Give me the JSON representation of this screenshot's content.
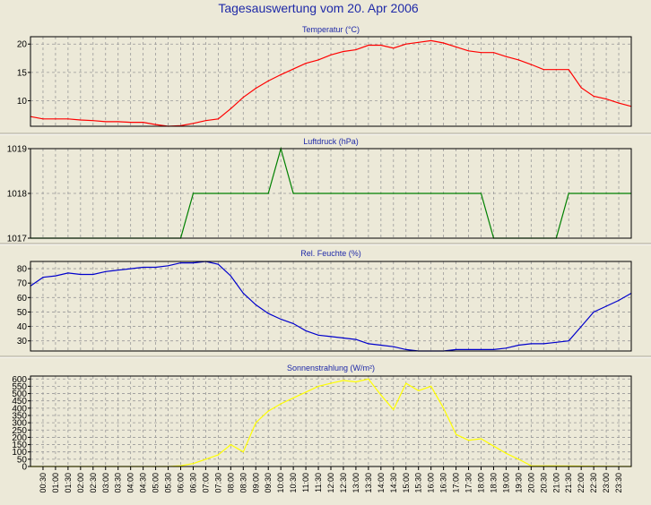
{
  "page_title": "Tagesauswertung vom 20. Apr 2006",
  "x_ticks": [
    "00:30",
    "01:00",
    "01:30",
    "02:00",
    "02:30",
    "03:00",
    "03:30",
    "04:00",
    "04:30",
    "05:00",
    "05:30",
    "06:00",
    "06:30",
    "07:00",
    "07:30",
    "08:00",
    "08:30",
    "09:00",
    "09:30",
    "10:00",
    "10:30",
    "11:00",
    "11:30",
    "12:00",
    "12:30",
    "13:00",
    "13:30",
    "14:00",
    "14:30",
    "15:00",
    "15:30",
    "16:00",
    "16:30",
    "17:00",
    "17:30",
    "18:00",
    "18:30",
    "19:00",
    "19:30",
    "20:00",
    "20:30",
    "21:00",
    "21:30",
    "22:00",
    "22:30",
    "23:00",
    "23:30"
  ],
  "chart_data": [
    {
      "type": "line",
      "title": "Temperatur (°C)",
      "color": "#ff0000",
      "ylim": [
        5.5,
        21.3
      ],
      "yticks": [
        10,
        15,
        20
      ],
      "x": [
        "00:00",
        "00:30",
        "01:00",
        "01:30",
        "02:00",
        "02:30",
        "03:00",
        "03:30",
        "04:00",
        "04:30",
        "05:00",
        "05:30",
        "06:00",
        "06:30",
        "07:00",
        "07:30",
        "08:00",
        "08:30",
        "09:00",
        "09:30",
        "10:00",
        "10:30",
        "11:00",
        "11:30",
        "12:00",
        "12:30",
        "13:00",
        "13:30",
        "14:00",
        "14:30",
        "15:00",
        "15:30",
        "16:00",
        "16:30",
        "17:00",
        "17:30",
        "18:00",
        "18:30",
        "19:00",
        "19:30",
        "20:00",
        "20:30",
        "21:00",
        "21:30",
        "22:00",
        "22:30",
        "23:00",
        "23:30",
        "24:00"
      ],
      "values": [
        7.2,
        6.8,
        6.8,
        6.8,
        6.6,
        6.5,
        6.3,
        6.3,
        6.2,
        6.2,
        5.8,
        5.5,
        5.6,
        6.0,
        6.5,
        6.8,
        8.6,
        10.6,
        12.2,
        13.5,
        14.6,
        15.6,
        16.6,
        17.2,
        18.1,
        18.7,
        19.0,
        19.8,
        19.8,
        19.3,
        20.0,
        20.3,
        20.6,
        20.2,
        19.5,
        18.8,
        18.5,
        18.5,
        17.8,
        17.2,
        16.4,
        15.5,
        15.5,
        15.5,
        12.3,
        10.8,
        10.3,
        9.6,
        9.0
      ]
    },
    {
      "type": "line",
      "title": "Luftdruck (hPa)",
      "color": "#008000",
      "ylim": [
        1017,
        1019
      ],
      "yticks": [
        1017,
        1018,
        1019
      ],
      "x": [
        "00:00",
        "06:00",
        "06:30",
        "07:00",
        "07:30",
        "08:00",
        "08:30",
        "09:00",
        "09:30",
        "10:00",
        "10:30",
        "11:00",
        "18:00",
        "18:30",
        "19:00",
        "19:30",
        "20:00",
        "20:30",
        "21:00",
        "21:30",
        "22:00",
        "24:00"
      ],
      "values": [
        1017,
        1017,
        1018,
        1018,
        1018,
        1018,
        1018,
        1018,
        1018,
        1019,
        1018,
        1018,
        1018,
        1017,
        1017,
        1017,
        1017,
        1017,
        1017,
        1018,
        1018,
        1018
      ]
    },
    {
      "type": "line",
      "title": "Rel. Feuchte (%)",
      "color": "#0000cc",
      "ylim": [
        23,
        85
      ],
      "yticks": [
        30,
        40,
        50,
        60,
        70,
        80
      ],
      "x": [
        "00:00",
        "00:30",
        "01:00",
        "01:30",
        "02:00",
        "02:30",
        "03:00",
        "03:30",
        "04:00",
        "04:30",
        "05:00",
        "05:30",
        "06:00",
        "06:30",
        "07:00",
        "07:30",
        "08:00",
        "08:30",
        "09:00",
        "09:30",
        "10:00",
        "10:30",
        "11:00",
        "11:30",
        "12:00",
        "12:30",
        "13:00",
        "13:30",
        "14:00",
        "14:30",
        "15:00",
        "15:30",
        "16:00",
        "16:30",
        "17:00",
        "17:30",
        "18:00",
        "18:30",
        "19:00",
        "19:30",
        "20:00",
        "20:30",
        "21:00",
        "21:30",
        "22:00",
        "22:30",
        "23:00",
        "23:30",
        "24:00"
      ],
      "values": [
        68,
        74,
        75,
        77,
        76,
        76,
        78,
        79,
        80,
        81,
        81,
        82,
        84,
        84,
        85,
        83,
        75,
        63,
        55,
        49,
        45,
        42,
        37,
        34,
        33,
        32,
        31,
        28,
        27,
        26,
        24,
        23,
        22,
        22,
        24,
        24,
        24,
        24,
        25,
        27,
        28,
        28,
        29,
        30,
        40,
        50,
        54,
        58,
        63
      ]
    },
    {
      "type": "line",
      "title": "Sonnenstrahlung (W/m²)",
      "color": "#ffff00",
      "ylim": [
        0,
        620
      ],
      "yticks": [
        0,
        50,
        100,
        150,
        200,
        250,
        300,
        350,
        400,
        450,
        500,
        550,
        600
      ],
      "x": [
        "00:00",
        "05:30",
        "06:00",
        "06:30",
        "07:00",
        "07:30",
        "08:00",
        "08:30",
        "09:00",
        "09:30",
        "10:00",
        "10:30",
        "11:00",
        "11:30",
        "12:00",
        "12:30",
        "13:00",
        "13:30",
        "14:00",
        "14:30",
        "15:00",
        "15:30",
        "16:00",
        "16:30",
        "17:00",
        "17:30",
        "18:00",
        "18:30",
        "19:00",
        "19:30",
        "20:00",
        "24:00"
      ],
      "values": [
        0,
        0,
        5,
        20,
        50,
        80,
        150,
        100,
        300,
        380,
        430,
        470,
        510,
        550,
        570,
        590,
        580,
        600,
        490,
        390,
        570,
        520,
        550,
        400,
        220,
        180,
        190,
        140,
        90,
        50,
        5,
        0
      ]
    }
  ]
}
